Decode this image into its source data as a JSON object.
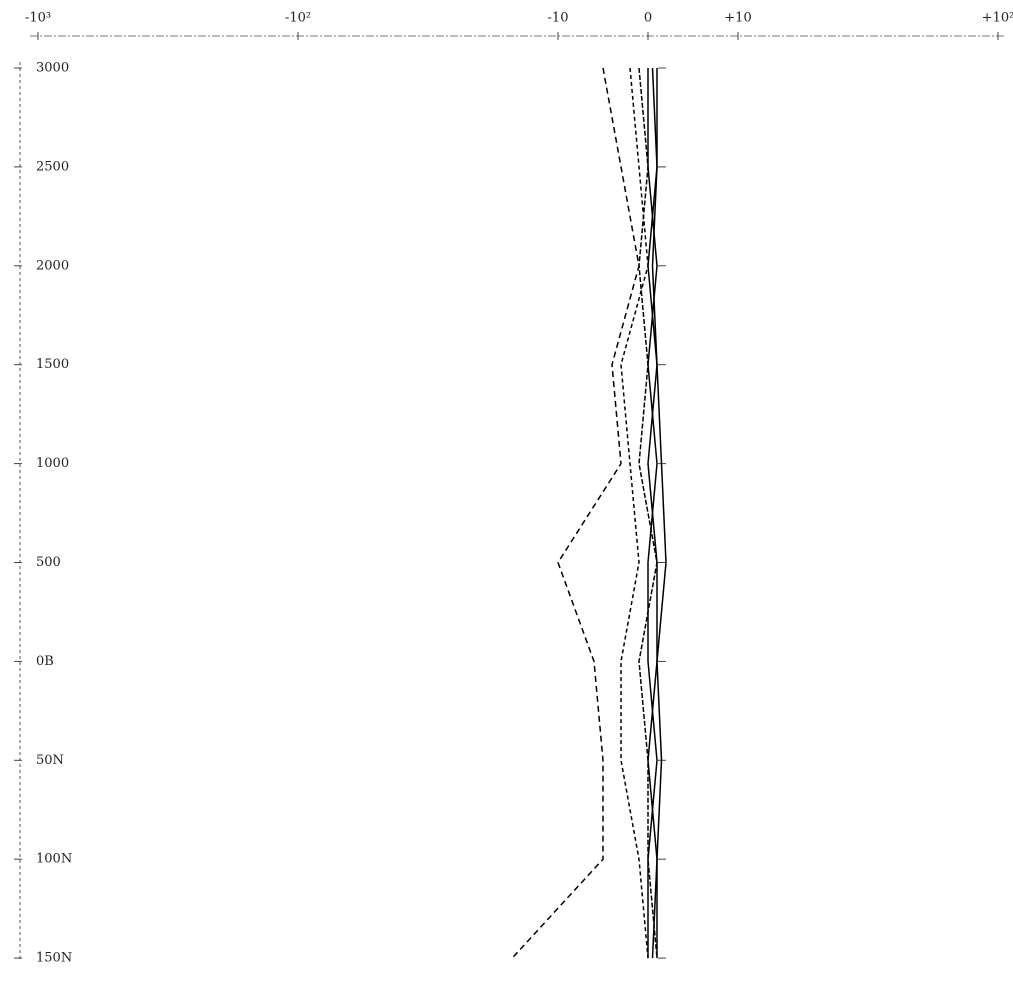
{
  "chart_data": {
    "type": "line",
    "categories": [
      "3000",
      "2500",
      "2000",
      "1500",
      "1000",
      "500",
      "0B",
      "50N",
      "100N",
      "150N"
    ],
    "series": [
      {
        "color": "#000000",
        "dash": "6 4",
        "values": [
          -5,
          -3,
          -1,
          -4,
          -3,
          -10,
          -6,
          -5,
          -5,
          -15
        ]
      },
      {
        "color": "#000000",
        "dash": "4 3",
        "values": [
          -2,
          -1,
          0,
          -3,
          -2,
          -1,
          -3,
          -3,
          -1,
          0
        ]
      },
      {
        "color": "#000000",
        "dash": "none",
        "values": [
          0,
          0,
          1,
          0,
          1,
          0,
          0,
          1,
          0,
          0
        ]
      },
      {
        "color": "#000000",
        "dash": "none",
        "values": [
          1,
          1,
          0,
          1,
          0,
          1,
          1,
          0,
          1,
          1
        ]
      },
      {
        "color": "#000000",
        "dash": "5 2",
        "values": [
          -1,
          0,
          -1,
          0,
          -1,
          1,
          -1,
          0,
          0,
          1
        ]
      },
      {
        "color": "#000000",
        "dash": "none",
        "values": [
          0.5,
          1,
          0.5,
          1,
          1.5,
          2,
          1,
          1.5,
          1,
          0.5
        ]
      }
    ],
    "xscale": "symlog",
    "linthresh": 10,
    "xlim": [
      -1000,
      100
    ],
    "xticks": [
      {
        "value": -1000,
        "label": "-10³"
      },
      {
        "value": -100,
        "label": "-10²"
      },
      {
        "value": -10,
        "label": "-10"
      },
      0,
      {
        "value": 10,
        "label": "+10"
      },
      {
        "value": 100,
        "label": "+10²"
      }
    ]
  }
}
